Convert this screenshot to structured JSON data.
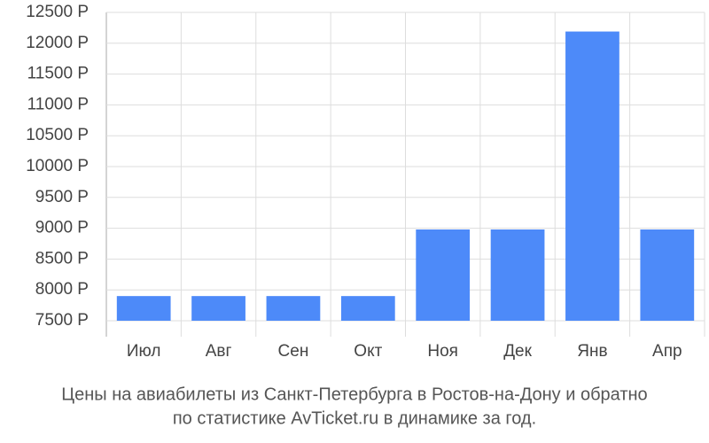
{
  "chart_data": {
    "type": "bar",
    "title": [
      "Цены на авиабилеты из Санкт-Петербурга в Ростов-на-Дону и обратно",
      "по статистике AvTicket.ru в динамике за год."
    ],
    "categories": [
      "Июл",
      "Авг",
      "Сен",
      "Окт",
      "Ноя",
      "Дек",
      "Янв",
      "Апр"
    ],
    "values": [
      7900,
      7900,
      7900,
      7900,
      8980,
      8980,
      12190,
      8980
    ],
    "color": "#4d8af9",
    "ylim": [
      7500,
      12500
    ],
    "yticks": [
      {
        "value": 7500,
        "label": "7500 Р"
      },
      {
        "value": 8000,
        "label": "8000 Р"
      },
      {
        "value": 8500,
        "label": "8500 Р"
      },
      {
        "value": 9000,
        "label": "9000 Р"
      },
      {
        "value": 9500,
        "label": "9500 Р"
      },
      {
        "value": 10000,
        "label": "10000 Р"
      },
      {
        "value": 10500,
        "label": "10500 Р"
      },
      {
        "value": 11000,
        "label": "11000 Р"
      },
      {
        "value": 11500,
        "label": "11500 Р"
      },
      {
        "value": 12000,
        "label": "12000 Р"
      },
      {
        "value": 12500,
        "label": "12500 Р"
      }
    ],
    "grid": true
  }
}
